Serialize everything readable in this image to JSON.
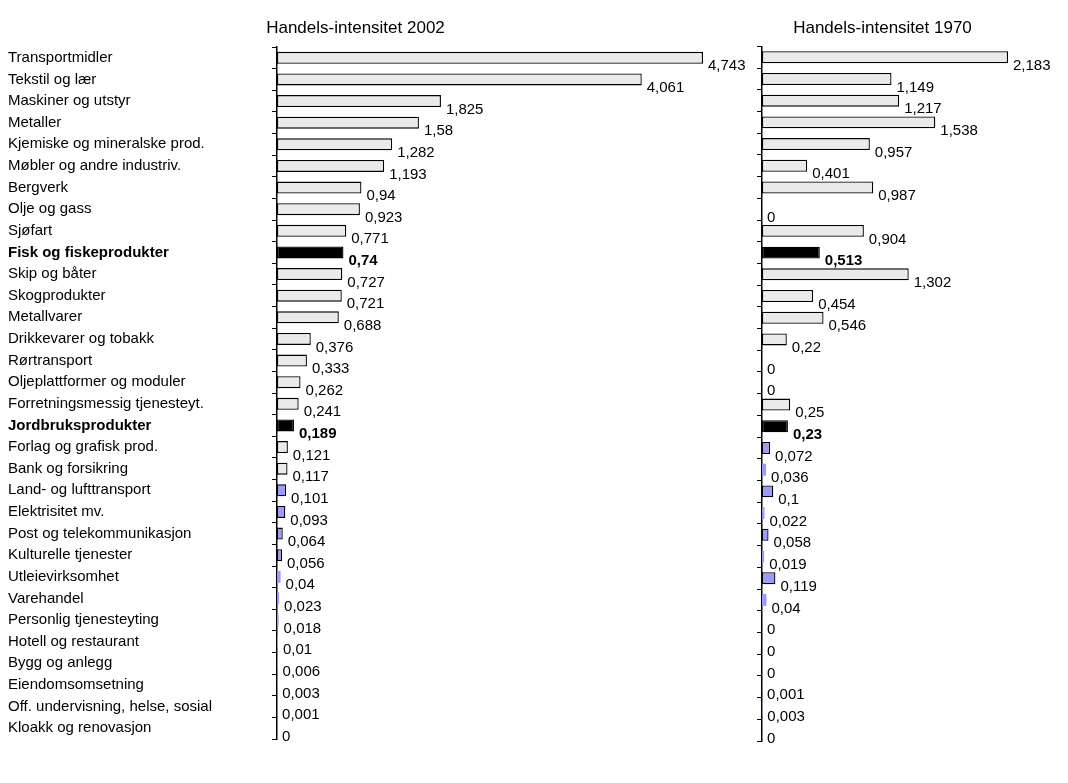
{
  "chart_data": [
    {
      "type": "bar",
      "orientation": "horizontal",
      "title": "Handels-intensitet 2002",
      "tick_labels": "y",
      "legend": false,
      "categories": [
        "Transportmidler",
        "Tekstil og lær",
        "Maskiner og utstyr",
        "Metaller",
        "Kjemiske og mineralske prod.",
        "Møbler og andre industriv.",
        "Bergverk",
        "Olje og gass",
        "Sjøfart",
        "Fisk og fiskeprodukter",
        "Skip og båter",
        "Skogprodukter",
        "Metallvarer",
        "Drikkevarer og tobakk",
        "Rørtransport",
        "Oljeplattformer og moduler",
        "Forretningsmessig tjenesteyt.",
        "Jordbruksprodukter",
        "Forlag og grafisk prod.",
        "Bank og forsikring",
        "Land- og lufttransport",
        "Elektrisitet mv.",
        "Post og telekommunikasjon",
        "Kulturelle tjenester",
        "Utleievirksomhet",
        "Varehandel",
        "Personlig tjenesteyting",
        "Hotell og restaurant",
        "Bygg og anlegg",
        "Eiendomsomsetning",
        "Off. undervisning, helse, sosial",
        "Kloakk og renovasjon"
      ],
      "values": [
        4.743,
        4.061,
        1.825,
        1.58,
        1.282,
        1.193,
        0.94,
        0.923,
        0.771,
        0.74,
        0.727,
        0.721,
        0.688,
        0.376,
        0.333,
        0.262,
        0.241,
        0.189,
        0.121,
        0.117,
        0.101,
        0.093,
        0.064,
        0.056,
        0.04,
        0.023,
        0.018,
        0.01,
        0.006,
        0.003,
        0.001,
        0
      ],
      "value_labels": [
        "4,743",
        "4,061",
        "1,825",
        "1,58",
        "1,282",
        "1,193",
        "0,94",
        "0,923",
        "0,771",
        "0,74",
        "0,727",
        "0,721",
        "0,688",
        "0,376",
        "0,333",
        "0,262",
        "0,241",
        "0,189",
        "0,121",
        "0,117",
        "0,101",
        "0,093",
        "0,064",
        "0,056",
        "0,04",
        "0,023",
        "0,018",
        "0,01",
        "0,006",
        "0,003",
        "0,001",
        "0"
      ],
      "colors": [
        "#eaeaea",
        "#eaeaea",
        "#eaeaea",
        "#eaeaea",
        "#eaeaea",
        "#eaeaea",
        "#eaeaea",
        "#eaeaea",
        "#eaeaea",
        "#000000",
        "#eaeaea",
        "#eaeaea",
        "#eaeaea",
        "#eaeaea",
        "#eaeaea",
        "#eaeaea",
        "#eaeaea",
        "#000000",
        "#eaeaea",
        "#eaeaea",
        "#9999ff",
        "#9999ff",
        "#9999ff",
        "#9999ff",
        "#9999ff",
        "#9999ff",
        "#9999ff",
        "#9999ff",
        "#9999ff",
        "#9999ff",
        "#9999ff",
        "#9999ff"
      ]
    },
    {
      "type": "bar",
      "orientation": "horizontal",
      "title": "Handels-intensitet 1970",
      "tick_labels": false,
      "legend": false,
      "categories": [
        null,
        null,
        null,
        null,
        null,
        null,
        null,
        null,
        null,
        null,
        null,
        null,
        null,
        null,
        null,
        null,
        null,
        null,
        null,
        null,
        null,
        null,
        null,
        null,
        null,
        null,
        null,
        null,
        null,
        null,
        null,
        null
      ],
      "values": [
        2.183,
        1.149,
        1.217,
        1.538,
        0.957,
        0.401,
        0.987,
        0,
        0.904,
        0.513,
        1.302,
        0.454,
        0.546,
        0.22,
        0,
        0,
        0.25,
        0.23,
        0.072,
        0.036,
        0.1,
        0.022,
        0.058,
        0.019,
        0.119,
        0.04,
        0,
        0,
        0,
        0.001,
        0.003,
        0
      ],
      "value_labels": [
        "2,183",
        "1,149",
        "1,217",
        "1,538",
        "0,957",
        "0,401",
        "0,987",
        "0",
        "0,904",
        "0,513",
        "1,302",
        "0,454",
        "0,546",
        "0,22",
        "0",
        "0",
        "0,25",
        "0,23",
        "0,072",
        "0,036",
        "0,1",
        "0,022",
        "0,058",
        "0,019",
        "0,119",
        "0,04",
        "0",
        "0",
        "0",
        "0,001",
        "0,003",
        "0"
      ],
      "colors": [
        "#eaeaea",
        "#eaeaea",
        "#eaeaea",
        "#eaeaea",
        "#eaeaea",
        "#eaeaea",
        "#eaeaea",
        "#eaeaea",
        "#eaeaea",
        "#000000",
        "#eaeaea",
        "#eaeaea",
        "#eaeaea",
        "#eaeaea",
        "#eaeaea",
        "#eaeaea",
        "#eaeaea",
        "#000000",
        "#9999ff",
        "#9999ff",
        "#9999ff",
        "#9999ff",
        "#9999ff",
        "#9999ff",
        "#9999ff",
        "#9999ff",
        "#9999ff",
        "#9999ff",
        "#9999ff",
        "#9999ff",
        "#9999ff",
        "#9999ff"
      ]
    }
  ]
}
